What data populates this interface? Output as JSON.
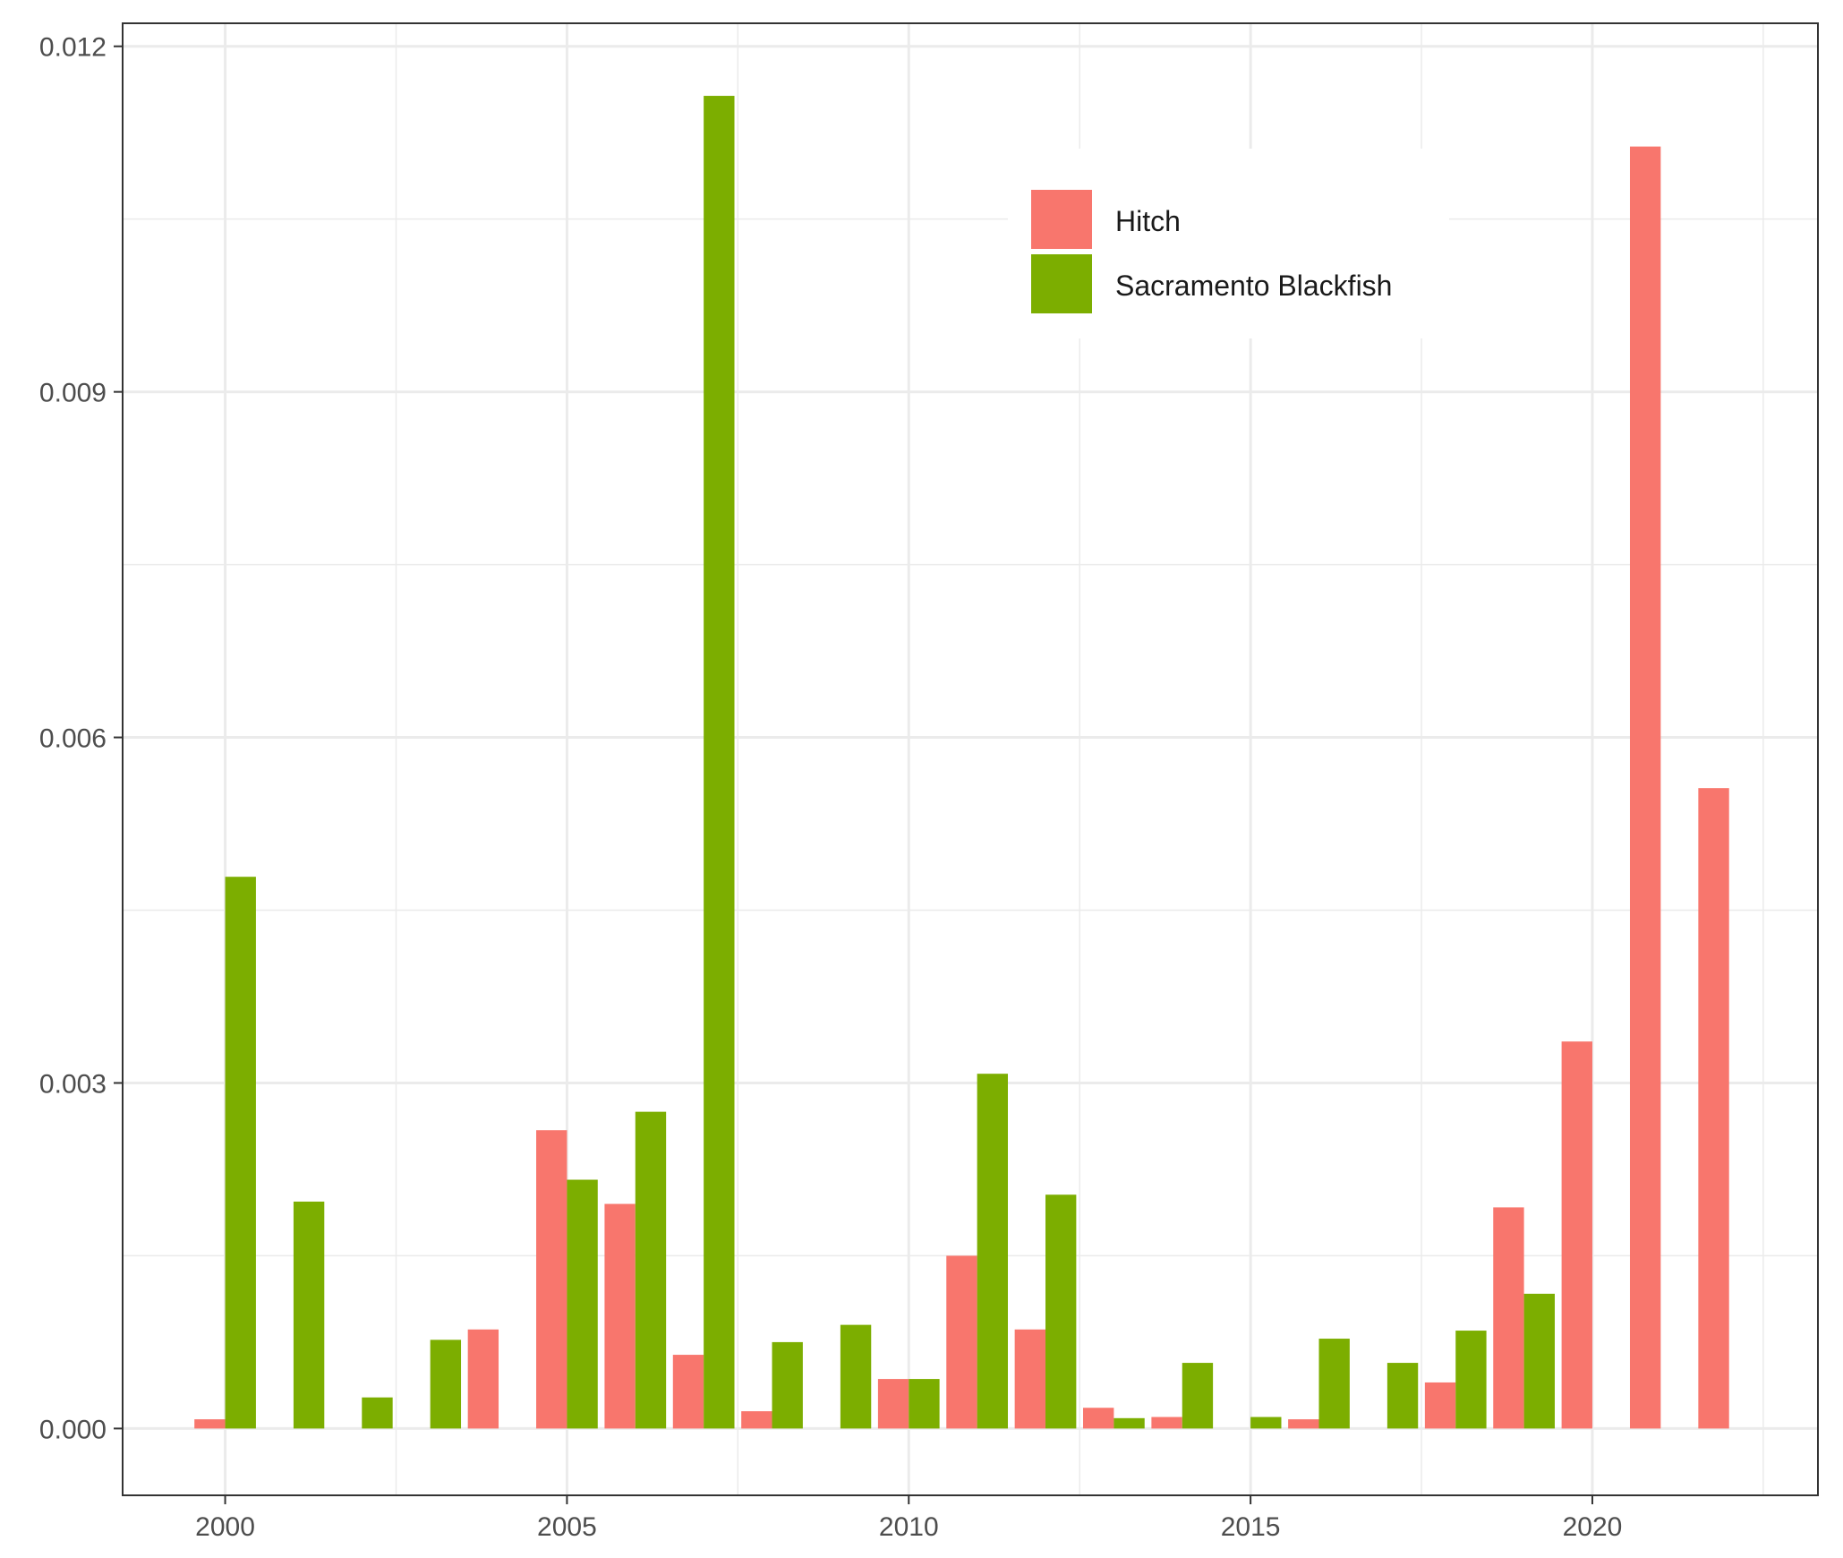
{
  "chart_data": {
    "type": "bar",
    "title": "",
    "xlabel": "",
    "ylabel": "",
    "x": [
      2000,
      2001,
      2002,
      2003,
      2004,
      2005,
      2006,
      2007,
      2008,
      2009,
      2010,
      2011,
      2012,
      2013,
      2014,
      2015,
      2016,
      2017,
      2018,
      2019,
      2020,
      2021,
      2022
    ],
    "series": [
      {
        "name": "Hitch",
        "color": "#F8766D",
        "values": [
          8e-05,
          null,
          null,
          null,
          0.00086,
          0.00259,
          0.00195,
          0.00064,
          0.00015,
          null,
          0.00043,
          0.0015,
          0.00086,
          0.00018,
          0.0001,
          null,
          8e-05,
          null,
          0.0004,
          0.00192,
          0.00336,
          0.01113,
          0.00556
        ]
      },
      {
        "name": "Sacramento Blackfish",
        "color": "#7CAE00",
        "values": [
          0.00479,
          0.00197,
          0.00027,
          0.00077,
          null,
          0.00216,
          0.00275,
          0.01157,
          0.00075,
          0.0009,
          0.00043,
          0.00308,
          0.00203,
          9e-05,
          0.00057,
          0.0001,
          0.00078,
          0.00057,
          0.00085,
          0.00117,
          null,
          null,
          null
        ]
      }
    ],
    "xlim": [
      1998.5,
      2023.3
    ],
    "ylim": [
      -0.00058,
      0.0122
    ],
    "x_ticks": [
      "2000",
      "2005",
      "2010",
      "2015",
      "2020"
    ],
    "y_ticks": [
      "0.000",
      "0.003",
      "0.006",
      "0.009",
      "0.012"
    ],
    "grid": true,
    "legend_position": "top-right"
  }
}
